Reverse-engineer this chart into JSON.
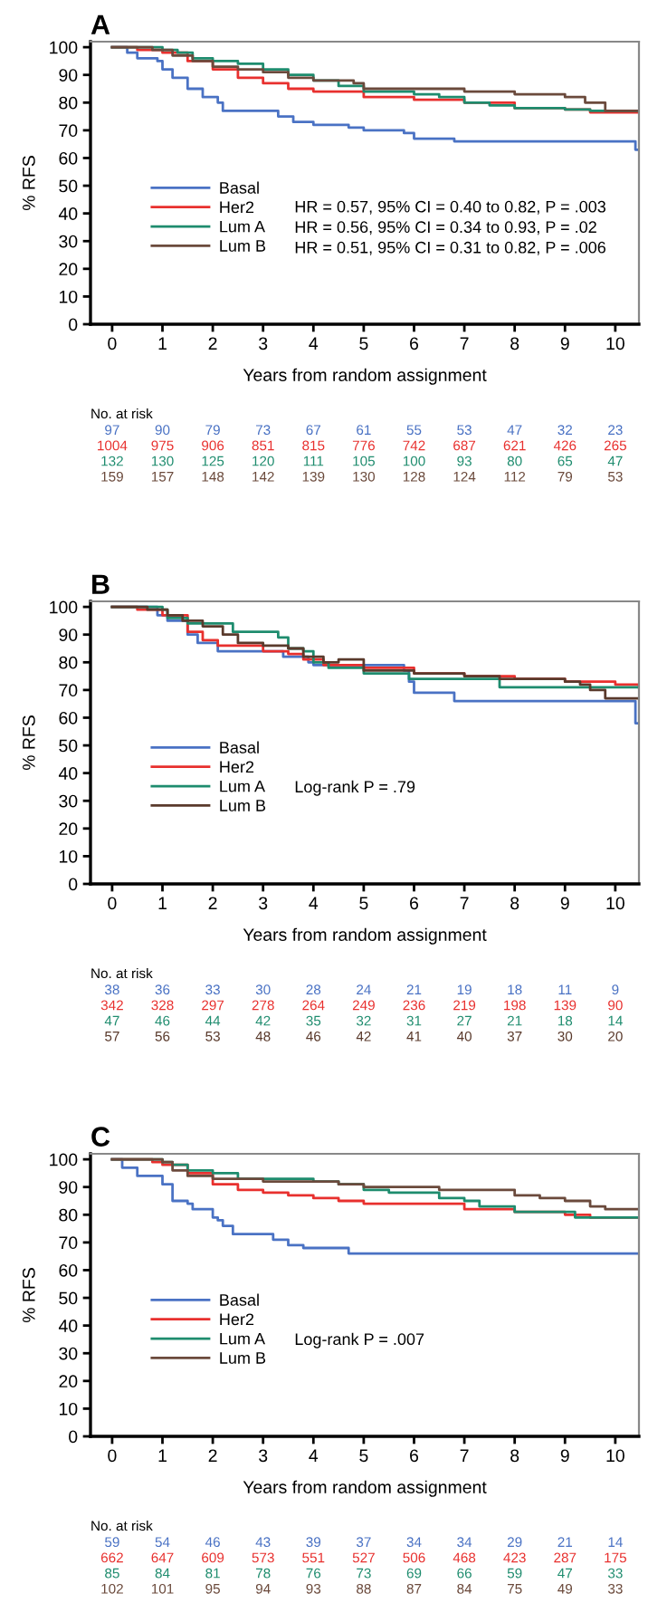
{
  "chart_data": [
    {
      "type": "step",
      "title": "A",
      "xlabel": "Years from random assignment",
      "ylabel": "% RFS",
      "xlim": [
        -0.43,
        10.47
      ],
      "ylim": [
        0,
        102
      ],
      "xticks": [
        0,
        1,
        2,
        3,
        4,
        5,
        6,
        7,
        8,
        9,
        10
      ],
      "yticks": [
        0,
        10,
        20,
        30,
        40,
        50,
        60,
        70,
        80,
        90,
        100
      ],
      "legend": "center left",
      "grid": false,
      "series": [
        {
          "name": "Basal",
          "color": "#4a72c4",
          "x": [
            0,
            0.3,
            0.5,
            0.9,
            1,
            1.2,
            1.5,
            1.8,
            2.1,
            2.2,
            3.1,
            3.3,
            3.6,
            4,
            4.7,
            5,
            5.8,
            6,
            6.8,
            10.3,
            10.4,
            10.47
          ],
          "values": [
            100,
            98,
            96,
            95,
            92,
            89,
            85,
            82,
            80,
            77,
            77,
            75,
            73,
            72,
            71,
            70,
            69,
            67,
            66,
            66,
            63,
            63
          ]
        },
        {
          "name": "Her2",
          "color": "#e8302e",
          "x": [
            0,
            0.5,
            1,
            1.5,
            2,
            2.5,
            3,
            3.5,
            4,
            5,
            6,
            7,
            8,
            9,
            9.5,
            10.47
          ],
          "values": [
            100,
            99,
            98,
            95,
            92,
            89,
            87,
            85,
            84,
            82,
            81,
            80,
            78,
            77.5,
            76.5,
            76.5
          ]
        },
        {
          "name": "Lum A",
          "color": "#1e8c6e",
          "x": [
            0,
            1,
            1.3,
            1.6,
            2,
            2.5,
            3,
            3.5,
            4,
            4.5,
            5,
            6,
            6.5,
            7,
            7.5,
            8,
            9,
            9.5,
            10.47
          ],
          "values": [
            100,
            99,
            98,
            96,
            95,
            94,
            92,
            90,
            88,
            86,
            84,
            83,
            82,
            80,
            79,
            78,
            77.5,
            77,
            77
          ]
        },
        {
          "name": "Lum B",
          "color": "#6b4a3c",
          "x": [
            0,
            0.8,
            1.2,
            1.6,
            2,
            2.5,
            3,
            3.5,
            4,
            4.8,
            5,
            6,
            7,
            7.5,
            8,
            9,
            9.4,
            9.8,
            10.47
          ],
          "values": [
            100,
            99,
            97,
            95,
            93,
            92,
            91,
            89,
            88,
            87,
            85,
            85,
            84,
            84,
            83,
            82,
            80,
            77,
            77
          ]
        }
      ],
      "annotations": [
        "HR = 0.57, 95% CI = 0.40 to 0.82, P = .003",
        "HR = 0.56, 95% CI = 0.34 to 0.93, P = .02",
        "HR = 0.51, 95% CI = 0.31 to 0.82, P = .006",
        "No. at risk",
        "97",
        "90",
        "79",
        "73",
        "67",
        "61",
        "55",
        "53",
        "47",
        "32",
        "23",
        "1004",
        "975",
        "906",
        "851",
        "815",
        "776",
        "742",
        "687",
        "621",
        "426",
        "265",
        "132",
        "130",
        "125",
        "120",
        "111",
        "105",
        "100",
        "93",
        "80",
        "65",
        "47",
        "159",
        "157",
        "148",
        "142",
        "139",
        "130",
        "128",
        "124",
        "112",
        "79",
        "53"
      ]
    },
    {
      "type": "step",
      "title": "B",
      "xlabel": "Years from random assignment",
      "ylabel": "% RFS",
      "xlim": [
        -0.43,
        10.47
      ],
      "ylim": [
        0,
        102
      ],
      "xticks": [
        0,
        1,
        2,
        3,
        4,
        5,
        6,
        7,
        8,
        9,
        10
      ],
      "yticks": [
        0,
        10,
        20,
        30,
        40,
        50,
        60,
        70,
        80,
        90,
        100
      ],
      "legend": "center left",
      "grid": false,
      "series": [
        {
          "name": "Basal",
          "color": "#4a72c4",
          "x": [
            0,
            0.9,
            1.1,
            1.5,
            1.7,
            2.1,
            3,
            3.4,
            3.9,
            4,
            5.8,
            5.9,
            6,
            6.8,
            10.3,
            10.4,
            10.47
          ],
          "values": [
            100,
            97,
            95,
            90,
            87,
            84,
            84,
            82,
            80,
            79,
            77,
            73,
            69,
            66,
            66,
            58,
            58
          ]
        },
        {
          "name": "Her2",
          "color": "#e8302e",
          "x": [
            0,
            0.5,
            1,
            1.5,
            1.8,
            2.1,
            3,
            3.5,
            3.8,
            4.2,
            5,
            6,
            7,
            8,
            9,
            10,
            10.47
          ],
          "values": [
            100,
            99,
            97,
            91,
            88,
            86,
            84,
            83,
            81,
            79,
            78,
            76,
            75,
            74,
            73,
            72,
            71
          ]
        },
        {
          "name": "Lum A",
          "color": "#1e8c6e",
          "x": [
            0,
            1,
            1.1,
            1.5,
            2,
            2.4,
            3,
            3.3,
            3.5,
            3.8,
            4,
            4.3,
            5,
            5.9,
            7,
            7.6,
            7.7,
            10.47
          ],
          "values": [
            100,
            99,
            96,
            94,
            94,
            91,
            91,
            89,
            85,
            84,
            80,
            78,
            76,
            74,
            74,
            74,
            71,
            71
          ]
        },
        {
          "name": "Lum B",
          "color": "#5a3a2c",
          "x": [
            0,
            0.7,
            1.1,
            1.4,
            1.8,
            2.2,
            2.5,
            3,
            3.5,
            3.8,
            4.2,
            4.5,
            4.9,
            5,
            6,
            7,
            7.6,
            7.7,
            9,
            9.3,
            9.5,
            9.8,
            10.47
          ],
          "values": [
            100,
            99,
            97,
            95,
            93,
            90,
            87,
            86,
            85,
            82,
            80,
            81,
            81,
            77,
            76,
            75,
            75,
            74,
            73,
            72,
            70,
            67,
            67
          ]
        }
      ],
      "annotations": [
        "Log-rank P = .79",
        "No. at risk",
        "38",
        "36",
        "33",
        "30",
        "28",
        "24",
        "21",
        "19",
        "18",
        "11",
        "9",
        "342",
        "328",
        "297",
        "278",
        "264",
        "249",
        "236",
        "219",
        "198",
        "139",
        "90",
        "47",
        "46",
        "44",
        "42",
        "35",
        "32",
        "31",
        "27",
        "21",
        "18",
        "14",
        "57",
        "56",
        "53",
        "48",
        "46",
        "42",
        "41",
        "40",
        "37",
        "30",
        "20"
      ]
    },
    {
      "type": "step",
      "title": "C",
      "xlabel": "Years from random assignment",
      "ylabel": "% RFS",
      "xlim": [
        -0.43,
        10.47
      ],
      "ylim": [
        0,
        102
      ],
      "xticks": [
        0,
        1,
        2,
        3,
        4,
        5,
        6,
        7,
        8,
        9,
        10
      ],
      "yticks": [
        0,
        10,
        20,
        30,
        40,
        50,
        60,
        70,
        80,
        90,
        100
      ],
      "legend": "center left",
      "grid": false,
      "series": [
        {
          "name": "Basal",
          "color": "#4a72c4",
          "x": [
            0,
            0.2,
            0.5,
            0.9,
            1,
            1.2,
            1.5,
            1.6,
            2,
            2.1,
            2.2,
            2.4,
            3,
            3.2,
            3.5,
            3.8,
            4.5,
            4.7,
            10.47
          ],
          "values": [
            100,
            97,
            94,
            94,
            91,
            85,
            84,
            82,
            79,
            78,
            76,
            73,
            73,
            71,
            69,
            68,
            68,
            66,
            66
          ]
        },
        {
          "name": "Her2",
          "color": "#e8302e",
          "x": [
            0,
            0.8,
            1,
            1.5,
            2,
            2.5,
            3,
            3.5,
            4,
            4.5,
            5,
            6,
            7,
            8,
            9,
            9.5,
            10.47
          ],
          "values": [
            100,
            99,
            98,
            95,
            91,
            89,
            88,
            87,
            86,
            85,
            84,
            84,
            82,
            81,
            80,
            79,
            79
          ]
        },
        {
          "name": "Lum A",
          "color": "#1e8c6e",
          "x": [
            0,
            1,
            1.2,
            1.5,
            2,
            2.5,
            3,
            4,
            4.5,
            5,
            5.5,
            6,
            6.5,
            7,
            7.3,
            8,
            9,
            9.2,
            10.47
          ],
          "values": [
            100,
            99,
            98,
            96,
            95,
            93,
            93,
            92,
            91,
            89,
            88,
            88,
            86,
            85,
            83,
            81,
            81,
            79,
            79
          ]
        },
        {
          "name": "Lum B",
          "color": "#6b4a3c",
          "x": [
            0,
            1,
            1.2,
            1.5,
            2,
            3,
            4,
            4.5,
            5,
            6,
            6.5,
            7,
            7.5,
            8,
            8.5,
            9,
            9.5,
            9.8,
            10.47
          ],
          "values": [
            100,
            99,
            96,
            94,
            93,
            92,
            92,
            91,
            90,
            90,
            89,
            89,
            89,
            87,
            86,
            85,
            83,
            82,
            82
          ]
        }
      ],
      "annotations": [
        "Log-rank P = .007",
        "No. at risk",
        "59",
        "54",
        "46",
        "43",
        "39",
        "37",
        "34",
        "34",
        "29",
        "21",
        "14",
        "662",
        "647",
        "609",
        "573",
        "551",
        "527",
        "506",
        "468",
        "423",
        "287",
        "175",
        "85",
        "84",
        "81",
        "78",
        "76",
        "73",
        "69",
        "66",
        "59",
        "47",
        "33",
        "102",
        "101",
        "95",
        "94",
        "93",
        "88",
        "87",
        "84",
        "75",
        "49",
        "33"
      ]
    }
  ]
}
